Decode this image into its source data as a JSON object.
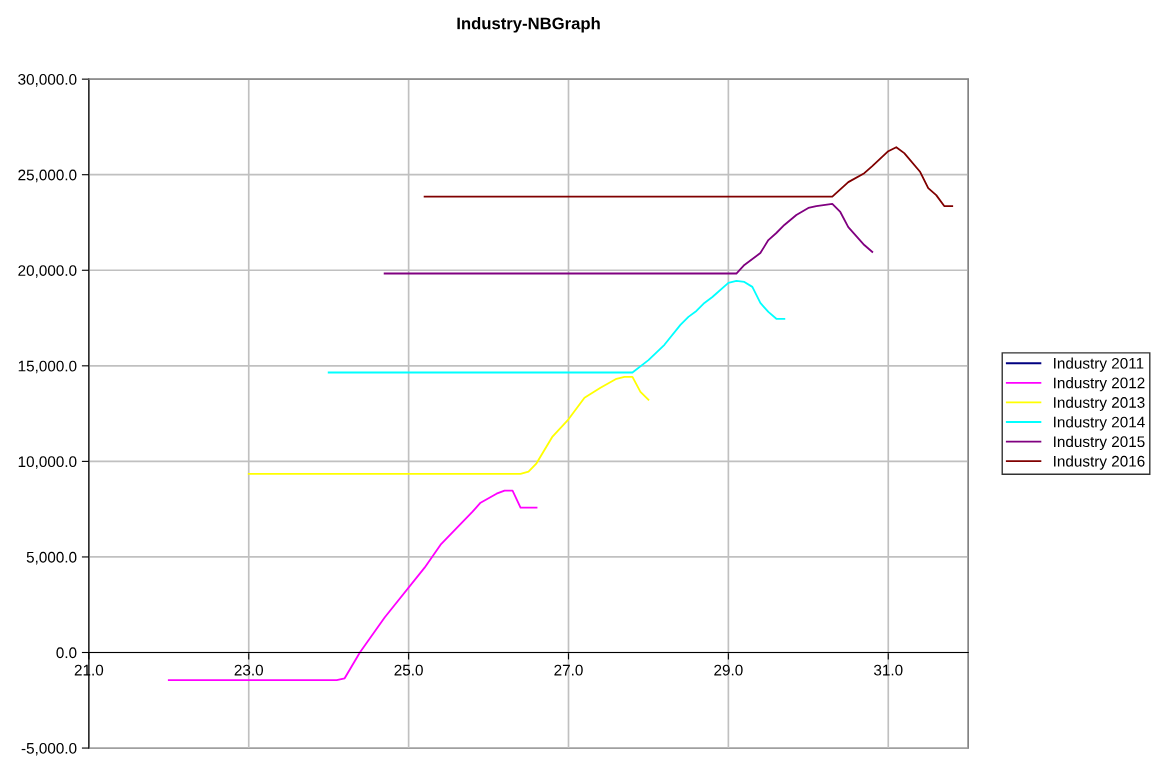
{
  "chart_data": {
    "type": "line",
    "title": "Industry-NBGraph",
    "xlim": [
      21,
      32
    ],
    "ylim": [
      -5000,
      30000
    ],
    "xticks": [
      {
        "value": 21,
        "label": "21.0"
      },
      {
        "value": 23,
        "label": "23.0"
      },
      {
        "value": 25,
        "label": "25.0"
      },
      {
        "value": 27,
        "label": "27.0"
      },
      {
        "value": 29,
        "label": "29.0"
      },
      {
        "value": 31,
        "label": "31.0"
      }
    ],
    "yticks": [
      {
        "value": -5000,
        "label": "-5,000.0"
      },
      {
        "value": 0,
        "label": "0.0"
      },
      {
        "value": 5000,
        "label": "5,000.0"
      },
      {
        "value": 10000,
        "label": "10,000.0"
      },
      {
        "value": 15000,
        "label": "15,000.0"
      },
      {
        "value": 20000,
        "label": "20,000.0"
      },
      {
        "value": 25000,
        "label": "25,000.0"
      },
      {
        "value": 30000,
        "label": "30,000.0"
      }
    ],
    "grid": true,
    "legend": "right",
    "marker": "none",
    "line_style": "solid",
    "series": [
      {
        "name": "Industry 2011",
        "color": "#000080"
      },
      {
        "name": "Industry 2012",
        "color": "#ff00ff",
        "x": [
          22.0,
          24.1,
          24.2,
          24.39,
          24.7,
          25.2,
          25.4,
          25.8,
          25.9,
          26.1,
          26.2,
          26.3,
          26.4,
          26.6
        ],
        "values": [
          -1450,
          -1450,
          -1350,
          0,
          1830,
          4440,
          5640,
          7370,
          7840,
          8310,
          8470,
          8470,
          7580,
          7580
        ]
      },
      {
        "name": "Industry 2013",
        "color": "#ffff00",
        "x": [
          23.0,
          26.4,
          26.5,
          26.6,
          26.8,
          27.0,
          27.2,
          27.4,
          27.6,
          27.7,
          27.8,
          27.9,
          28.0
        ],
        "values": [
          9350,
          9350,
          9460,
          9900,
          11300,
          12200,
          13330,
          13850,
          14320,
          14420,
          14420,
          13640,
          13220
        ]
      },
      {
        "name": "Industry 2014",
        "color": "#00ffff",
        "x": [
          24.0,
          27.8,
          28.0,
          28.2,
          28.4,
          28.5,
          28.6,
          28.7,
          28.8,
          29.0,
          29.1,
          29.2,
          29.3,
          29.4,
          29.5,
          29.6,
          29.7
        ],
        "values": [
          14650,
          14650,
          15300,
          16100,
          17140,
          17560,
          17870,
          18290,
          18600,
          19340,
          19440,
          19390,
          19130,
          18290,
          17820,
          17460,
          17460
        ]
      },
      {
        "name": "Industry 2015",
        "color": "#800080",
        "x": [
          24.7,
          29.1,
          29.2,
          29.4,
          29.5,
          29.6,
          29.7,
          29.85,
          30.0,
          30.1,
          30.3,
          30.4,
          30.5,
          30.7,
          30.8
        ],
        "values": [
          19830,
          19830,
          20280,
          20900,
          21580,
          21950,
          22370,
          22890,
          23260,
          23360,
          23470,
          23050,
          22260,
          21320,
          20960
        ]
      },
      {
        "name": "Industry 2016",
        "color": "#800000",
        "x": [
          25.2,
          30.3,
          30.5,
          30.7,
          30.8,
          31.0,
          31.1,
          31.2,
          31.4,
          31.5,
          31.6,
          31.7,
          31.8
        ],
        "values": [
          23850,
          23850,
          24610,
          25080,
          25450,
          26230,
          26440,
          26130,
          25140,
          24300,
          23930,
          23360,
          23360
        ]
      }
    ]
  }
}
